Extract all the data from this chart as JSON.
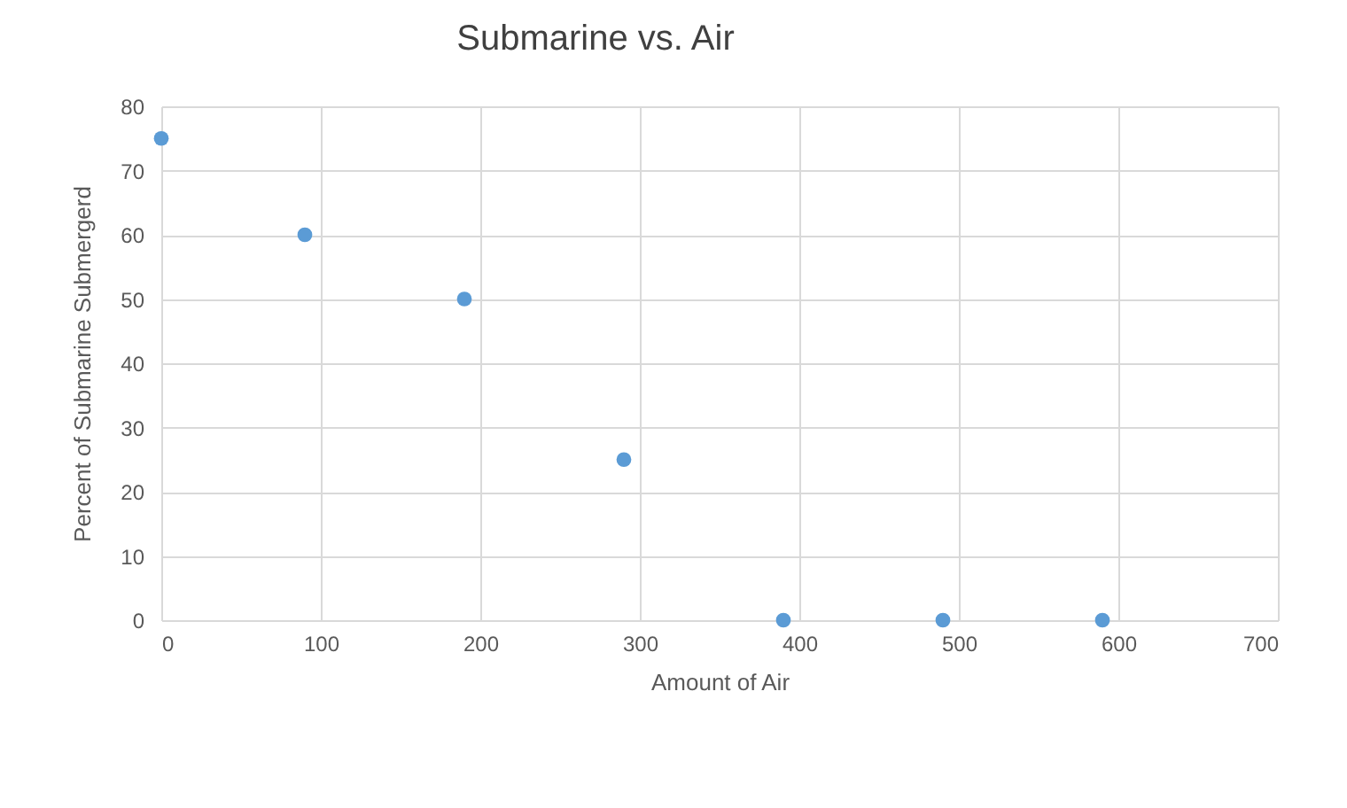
{
  "chart_data": {
    "type": "scatter",
    "title": "Submarine vs. Air",
    "xlabel": "Amount of Air",
    "ylabel": "Percent of Submarine Submergerd",
    "x": [
      0,
      90,
      190,
      290,
      390,
      490,
      590
    ],
    "series": [
      {
        "color": "#5b9bd5",
        "values": [
          75,
          60,
          50,
          25,
          0,
          0,
          0
        ]
      }
    ],
    "xlim": [
      0,
      700
    ],
    "xticks": [
      0,
      100,
      200,
      300,
      400,
      500,
      600,
      700
    ],
    "ylim": [
      0,
      80
    ],
    "yticks": [
      0,
      10,
      20,
      30,
      40,
      50,
      60,
      70,
      80
    ],
    "grid": true,
    "marker": "circle"
  }
}
